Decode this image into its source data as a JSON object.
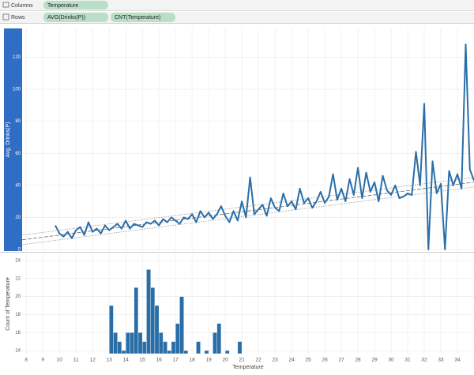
{
  "shelves": {
    "columns_label": "Columns",
    "columns": [
      "Temperature"
    ],
    "rows_label": "Rows",
    "rows": [
      "AVG(Drinks(P))",
      "CNT(Temperature)"
    ]
  },
  "chart_data": [
    {
      "type": "line",
      "y_label": "Avg. Drinks(P)",
      "color": "#2a6ea8",
      "x": [
        9.75,
        10,
        10.25,
        10.5,
        10.75,
        11,
        11.25,
        11.5,
        11.75,
        12,
        12.25,
        12.5,
        12.75,
        13,
        13.25,
        13.5,
        13.75,
        14,
        14.25,
        14.5,
        14.75,
        15,
        15.25,
        15.5,
        15.75,
        16,
        16.25,
        16.5,
        16.75,
        17,
        17.25,
        17.5,
        17.75,
        18,
        18.25,
        18.5,
        18.75,
        19,
        19.25,
        19.5,
        19.75,
        20,
        20.25,
        20.5,
        20.75,
        21,
        21.25,
        21.5,
        21.75,
        22,
        22.25,
        22.5,
        22.75,
        23,
        23.25,
        23.5,
        23.75,
        24,
        24.25,
        24.5,
        24.75,
        25,
        25.25,
        25.5,
        25.75,
        26,
        26.25,
        26.5,
        26.75,
        27,
        27.25,
        27.5,
        27.75,
        28,
        28.25,
        28.5,
        28.75,
        29,
        29.25,
        29.5,
        29.75,
        30,
        30.25,
        30.5,
        30.75,
        31,
        31.25,
        31.5,
        31.75,
        32,
        32.25,
        32.5,
        32.75,
        33,
        33.25,
        33.5,
        33.75,
        34,
        34.25,
        34.5,
        34.75,
        35
      ],
      "values": [
        15,
        10,
        8,
        11,
        7,
        12,
        14,
        9,
        17,
        11,
        13,
        10,
        15,
        12,
        14,
        16,
        13,
        18,
        13,
        16,
        15,
        14,
        17,
        16,
        18,
        15,
        19,
        17,
        20,
        18,
        16,
        20,
        19,
        22,
        17,
        24,
        20,
        23,
        19,
        22,
        27,
        21,
        17,
        24,
        18,
        30,
        20,
        45,
        22,
        25,
        28,
        21,
        32,
        26,
        24,
        35,
        27,
        30,
        25,
        38,
        29,
        32,
        26,
        30,
        36,
        29,
        33,
        47,
        31,
        38,
        30,
        44,
        34,
        51,
        32,
        48,
        36,
        42,
        30,
        46,
        37,
        34,
        40,
        32,
        33,
        35,
        34,
        61,
        40,
        91,
        0,
        55,
        35,
        41,
        0,
        49,
        40,
        47,
        38,
        128,
        50,
        43
      ],
      "trend": {
        "x": [
          7.75,
          35
        ],
        "values": [
          6,
          42
        ],
        "upper": [
          9,
          45
        ],
        "lower": [
          3,
          39
        ]
      },
      "xlim": [
        7.75,
        35
      ],
      "ylim": [
        -1,
        138
      ],
      "yticks": [
        0,
        20,
        40,
        60,
        80,
        100,
        120
      ],
      "grid": true
    },
    {
      "type": "bar",
      "y_label": "Count of Temperature",
      "x_label": "Temperature",
      "color": "#2a6ea8",
      "x": [
        13,
        13.25,
        13.5,
        13.75,
        14,
        14.25,
        14.5,
        14.75,
        15,
        15.25,
        15.5,
        15.75,
        16,
        16.25,
        16.5,
        16.75,
        17,
        17.25,
        17.5,
        18.25,
        18.75,
        19.25,
        19.5,
        20,
        20.75
      ],
      "values": [
        19,
        16,
        15,
        14,
        16,
        16,
        21,
        16,
        15,
        23,
        21,
        19,
        16,
        15,
        14,
        15,
        17,
        20,
        14,
        15,
        14,
        16,
        17,
        14,
        15
      ],
      "bar_width": 0.25,
      "xlim": [
        7.75,
        35
      ],
      "xticks": [
        8,
        9,
        10,
        11,
        12,
        13,
        14,
        15,
        16,
        17,
        18,
        19,
        20,
        21,
        22,
        23,
        24,
        25,
        26,
        27,
        28,
        29,
        30,
        31,
        32,
        33,
        34
      ],
      "ylim": [
        13.65,
        24.7
      ],
      "yticks": [
        14,
        16,
        18,
        20,
        22,
        24
      ],
      "grid": true
    }
  ]
}
